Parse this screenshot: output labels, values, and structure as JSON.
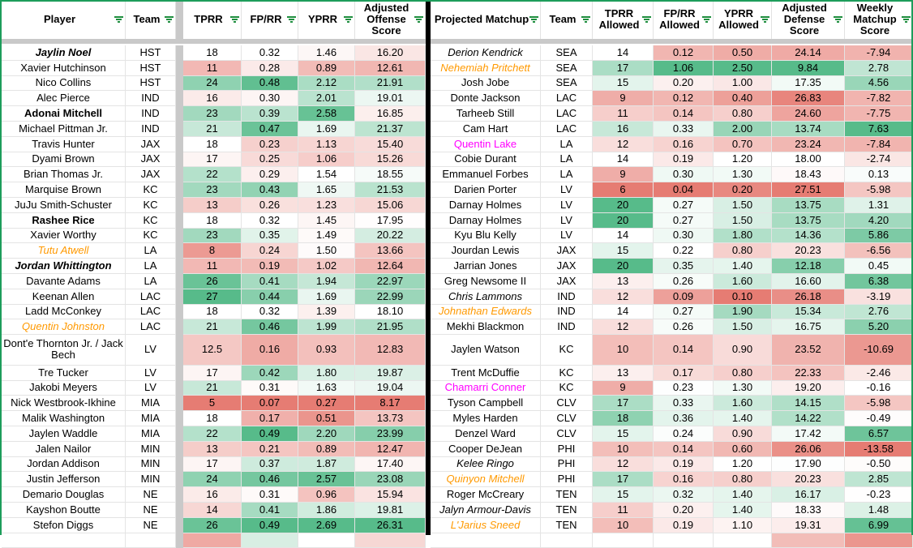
{
  "app": {
    "type": "spreadsheet-grid",
    "description": "Fantasy football receiver vs projected cornerback matchup sheet"
  },
  "colors": {
    "scale_low_red": "#E67C73",
    "scale_mid_white": "#FFFFFF",
    "scale_high_green": "#57BB8A",
    "table_outline_green": "#1D9D5B",
    "filter_icon_green": "#1E8E3E",
    "frozen_pane_gray": "#C9C9C9",
    "table_divider_black": "#000000",
    "player_highlight_orange": "#FF9900",
    "player_highlight_magenta": "#FF00FF"
  },
  "left_table": {
    "name": "offense",
    "name_key": "player",
    "columns": [
      {
        "key": "player",
        "label": "Player",
        "filter": true
      },
      {
        "key": "team",
        "label": "Team",
        "filter": true
      },
      {
        "key": "spacer"
      },
      {
        "key": "tprr",
        "label": "TPRR",
        "filter": true,
        "numeric": true
      },
      {
        "key": "fprr",
        "label": "FP/RR",
        "filter": true,
        "numeric": true
      },
      {
        "key": "yprr",
        "label": "YPRR",
        "filter": true,
        "numeric": true
      },
      {
        "key": "adj",
        "label": "Adjusted Offense Score",
        "filter": true,
        "numeric": true
      }
    ],
    "clipped_row_colors": {
      "tprr": "#efa9a3",
      "fprr": "#d8eee3",
      "yprr": "#ffffff",
      "adj": "#f6d7d4"
    },
    "rows": [
      {
        "player": "Jaylin Noel",
        "team": "HST",
        "tprr": "18",
        "fprr": "0.32",
        "yprr": "1.46",
        "adj": "16.20",
        "style": "bold italic"
      },
      {
        "player": "Xavier Hutchinson",
        "team": "HST",
        "tprr": "11",
        "fprr": "0.28",
        "yprr": "0.89",
        "adj": "12.61",
        "style": ""
      },
      {
        "player": "Nico Collins",
        "team": "HST",
        "tprr": "24",
        "fprr": "0.48",
        "yprr": "2.12",
        "adj": "21.91",
        "style": ""
      },
      {
        "player": "Alec Pierce",
        "team": "IND",
        "tprr": "16",
        "fprr": "0.30",
        "yprr": "2.01",
        "adj": "19.01",
        "style": ""
      },
      {
        "player": "Adonai Mitchell",
        "team": "IND",
        "tprr": "23",
        "fprr": "0.39",
        "yprr": "2.58",
        "adj": "16.85",
        "style": "bold"
      },
      {
        "player": "Michael Pittman Jr.",
        "team": "IND",
        "tprr": "21",
        "fprr": "0.47",
        "yprr": "1.69",
        "adj": "21.37",
        "style": ""
      },
      {
        "player": "Travis Hunter",
        "team": "JAX",
        "tprr": "18",
        "fprr": "0.23",
        "yprr": "1.13",
        "adj": "15.40",
        "style": ""
      },
      {
        "player": "Dyami Brown",
        "team": "JAX",
        "tprr": "17",
        "fprr": "0.25",
        "yprr": "1.06",
        "adj": "15.26",
        "style": ""
      },
      {
        "player": "Brian Thomas Jr.",
        "team": "JAX",
        "tprr": "22",
        "fprr": "0.29",
        "yprr": "1.54",
        "adj": "18.55",
        "style": ""
      },
      {
        "player": "Marquise Brown",
        "team": "KC",
        "tprr": "23",
        "fprr": "0.43",
        "yprr": "1.65",
        "adj": "21.53",
        "style": ""
      },
      {
        "player": "JuJu Smith-Schuster",
        "team": "KC",
        "tprr": "13",
        "fprr": "0.26",
        "yprr": "1.23",
        "adj": "15.06",
        "style": ""
      },
      {
        "player": "Rashee Rice",
        "team": "KC",
        "tprr": "18",
        "fprr": "0.32",
        "yprr": "1.45",
        "adj": "17.95",
        "style": "bold"
      },
      {
        "player": "Xavier Worthy",
        "team": "KC",
        "tprr": "23",
        "fprr": "0.35",
        "yprr": "1.49",
        "adj": "20.22",
        "style": ""
      },
      {
        "player": "Tutu Atwell",
        "team": "LA",
        "tprr": "8",
        "fprr": "0.24",
        "yprr": "1.50",
        "adj": "13.66",
        "style": "italic",
        "color": "orange"
      },
      {
        "player": "Jordan Whittington",
        "team": "LA",
        "tprr": "11",
        "fprr": "0.19",
        "yprr": "1.02",
        "adj": "12.64",
        "style": "bold italic"
      },
      {
        "player": "Davante Adams",
        "team": "LA",
        "tprr": "26",
        "fprr": "0.41",
        "yprr": "1.94",
        "adj": "22.97",
        "style": ""
      },
      {
        "player": "Keenan Allen",
        "team": "LAC",
        "tprr": "27",
        "fprr": "0.44",
        "yprr": "1.69",
        "adj": "22.99",
        "style": ""
      },
      {
        "player": "Ladd McConkey",
        "team": "LAC",
        "tprr": "18",
        "fprr": "0.32",
        "yprr": "1.39",
        "adj": "18.10",
        "style": ""
      },
      {
        "player": "Quentin Johnston",
        "team": "LAC",
        "tprr": "21",
        "fprr": "0.46",
        "yprr": "1.99",
        "adj": "21.95",
        "style": "italic",
        "color": "orange"
      },
      {
        "player": "Dont'e Thornton Jr. / Jack Bech",
        "team": "LV",
        "tprr": "12.5",
        "fprr": "0.16",
        "yprr": "0.93",
        "adj": "12.83",
        "style": "",
        "tall": true
      },
      {
        "player": "Tre Tucker",
        "team": "LV",
        "tprr": "17",
        "fprr": "0.42",
        "yprr": "1.80",
        "adj": "19.87",
        "style": ""
      },
      {
        "player": "Jakobi Meyers",
        "team": "LV",
        "tprr": "21",
        "fprr": "0.31",
        "yprr": "1.63",
        "adj": "19.04",
        "style": ""
      },
      {
        "player": "Nick Westbrook-Ikhine",
        "team": "MIA",
        "tprr": "5",
        "fprr": "0.07",
        "yprr": "0.27",
        "adj": "8.17",
        "style": ""
      },
      {
        "player": "Malik Washington",
        "team": "MIA",
        "tprr": "18",
        "fprr": "0.17",
        "yprr": "0.51",
        "adj": "13.73",
        "style": ""
      },
      {
        "player": "Jaylen Waddle",
        "team": "MIA",
        "tprr": "22",
        "fprr": "0.49",
        "yprr": "2.20",
        "adj": "23.99",
        "style": ""
      },
      {
        "player": "Jalen Nailor",
        "team": "MIN",
        "tprr": "13",
        "fprr": "0.21",
        "yprr": "0.89",
        "adj": "12.47",
        "style": ""
      },
      {
        "player": "Jordan Addison",
        "team": "MIN",
        "tprr": "17",
        "fprr": "0.37",
        "yprr": "1.87",
        "adj": "17.40",
        "style": ""
      },
      {
        "player": "Justin Jefferson",
        "team": "MIN",
        "tprr": "24",
        "fprr": "0.46",
        "yprr": "2.57",
        "adj": "23.08",
        "style": ""
      },
      {
        "player": "Demario Douglas",
        "team": "NE",
        "tprr": "16",
        "fprr": "0.31",
        "yprr": "0.96",
        "adj": "15.94",
        "style": ""
      },
      {
        "player": "Kayshon Boutte",
        "team": "NE",
        "tprr": "14",
        "fprr": "0.41",
        "yprr": "1.86",
        "adj": "19.81",
        "style": ""
      },
      {
        "player": "Stefon Diggs",
        "team": "NE",
        "tprr": "26",
        "fprr": "0.49",
        "yprr": "2.69",
        "adj": "26.31",
        "style": ""
      }
    ]
  },
  "right_table": {
    "name": "defense",
    "name_key": "matchup",
    "columns": [
      {
        "key": "matchup",
        "label": "Projected Matchup",
        "filter": true
      },
      {
        "key": "team",
        "label": "Team",
        "filter": true
      },
      {
        "key": "tprr",
        "label": "TPRR Allowed",
        "filter": true,
        "numeric": true
      },
      {
        "key": "fprr",
        "label": "FP/RR Allowed",
        "filter": true,
        "numeric": true
      },
      {
        "key": "yprr",
        "label": "YPRR Allowed",
        "filter": true,
        "numeric": true
      },
      {
        "key": "adj",
        "label": "Adjusted Defense Score",
        "filter": true,
        "numeric": true,
        "invert": true
      },
      {
        "key": "weekly",
        "label": "Weekly Matchup Score",
        "filter": true,
        "numeric": true
      }
    ],
    "clipped_row_colors": {
      "tprr": "#ffffff",
      "fprr": "#ffffff",
      "yprr": "#ffffff",
      "adj": "#f2bdb8",
      "weekly": "#eb968e"
    },
    "rows": [
      {
        "matchup": "Derion Kendrick",
        "team": "SEA",
        "tprr": "14",
        "fprr": "0.12",
        "yprr": "0.50",
        "adj": "24.14",
        "weekly": "-7.94",
        "style": "italic"
      },
      {
        "matchup": "Nehemiah Pritchett",
        "team": "SEA",
        "tprr": "17",
        "fprr": "1.06",
        "yprr": "2.50",
        "adj": "9.84",
        "weekly": "2.78",
        "style": "italic",
        "color": "orange"
      },
      {
        "matchup": "Josh Jobe",
        "team": "SEA",
        "tprr": "15",
        "fprr": "0.20",
        "yprr": "1.00",
        "adj": "17.35",
        "weekly": "4.56",
        "style": ""
      },
      {
        "matchup": "Donte Jackson",
        "team": "LAC",
        "tprr": "9",
        "fprr": "0.12",
        "yprr": "0.40",
        "adj": "26.83",
        "weekly": "-7.82",
        "style": ""
      },
      {
        "matchup": "Tarheeb Still",
        "team": "LAC",
        "tprr": "11",
        "fprr": "0.14",
        "yprr": "0.80",
        "adj": "24.60",
        "weekly": "-7.75",
        "style": ""
      },
      {
        "matchup": "Cam Hart",
        "team": "LAC",
        "tprr": "16",
        "fprr": "0.33",
        "yprr": "2.00",
        "adj": "13.74",
        "weekly": "7.63",
        "style": ""
      },
      {
        "matchup": "Quentin Lake",
        "team": "LA",
        "tprr": "12",
        "fprr": "0.16",
        "yprr": "0.70",
        "adj": "23.24",
        "weekly": "-7.84",
        "style": "",
        "color": "magenta"
      },
      {
        "matchup": "Cobie Durant",
        "team": "LA",
        "tprr": "14",
        "fprr": "0.19",
        "yprr": "1.20",
        "adj": "18.00",
        "weekly": "-2.74",
        "style": ""
      },
      {
        "matchup": "Emmanuel Forbes",
        "team": "LA",
        "tprr": "9",
        "fprr": "0.30",
        "yprr": "1.30",
        "adj": "18.43",
        "weekly": "0.13",
        "style": ""
      },
      {
        "matchup": "Darien Porter",
        "team": "LV",
        "tprr": "6",
        "fprr": "0.04",
        "yprr": "0.20",
        "adj": "27.51",
        "weekly": "-5.98",
        "style": ""
      },
      {
        "matchup": "Darnay Holmes",
        "team": "LV",
        "tprr": "20",
        "fprr": "0.27",
        "yprr": "1.50",
        "adj": "13.75",
        "weekly": "1.31",
        "style": ""
      },
      {
        "matchup": "Darnay Holmes",
        "team": "LV",
        "tprr": "20",
        "fprr": "0.27",
        "yprr": "1.50",
        "adj": "13.75",
        "weekly": "4.20",
        "style": ""
      },
      {
        "matchup": "Kyu Blu Kelly",
        "team": "LV",
        "tprr": "14",
        "fprr": "0.30",
        "yprr": "1.80",
        "adj": "14.36",
        "weekly": "5.86",
        "style": ""
      },
      {
        "matchup": "Jourdan Lewis",
        "team": "JAX",
        "tprr": "15",
        "fprr": "0.22",
        "yprr": "0.80",
        "adj": "20.23",
        "weekly": "-6.56",
        "style": ""
      },
      {
        "matchup": "Jarrian Jones",
        "team": "JAX",
        "tprr": "20",
        "fprr": "0.35",
        "yprr": "1.40",
        "adj": "12.18",
        "weekly": "0.45",
        "style": ""
      },
      {
        "matchup": "Greg Newsome II",
        "team": "JAX",
        "tprr": "13",
        "fprr": "0.26",
        "yprr": "1.60",
        "adj": "16.60",
        "weekly": "6.38",
        "style": ""
      },
      {
        "matchup": "Chris Lammons",
        "team": "IND",
        "tprr": "12",
        "fprr": "0.09",
        "yprr": "0.10",
        "adj": "26.18",
        "weekly": "-3.19",
        "style": "italic"
      },
      {
        "matchup": "Johnathan Edwards",
        "team": "IND",
        "tprr": "14",
        "fprr": "0.27",
        "yprr": "1.90",
        "adj": "15.34",
        "weekly": "2.76",
        "style": "italic",
        "color": "orange"
      },
      {
        "matchup": "Mekhi Blackmon",
        "team": "IND",
        "tprr": "12",
        "fprr": "0.26",
        "yprr": "1.50",
        "adj": "16.75",
        "weekly": "5.20",
        "style": ""
      },
      {
        "matchup": "Jaylen Watson",
        "team": "KC",
        "tprr": "10",
        "fprr": "0.14",
        "yprr": "0.90",
        "adj": "23.52",
        "weekly": "-10.69",
        "style": "",
        "tall": true
      },
      {
        "matchup": "Trent McDuffie",
        "team": "KC",
        "tprr": "13",
        "fprr": "0.17",
        "yprr": "0.80",
        "adj": "22.33",
        "weekly": "-2.46",
        "style": ""
      },
      {
        "matchup": "Chamarri Conner",
        "team": "KC",
        "tprr": "9",
        "fprr": "0.23",
        "yprr": "1.30",
        "adj": "19.20",
        "weekly": "-0.16",
        "style": "",
        "color": "magenta"
      },
      {
        "matchup": "Tyson Campbell",
        "team": "CLV",
        "tprr": "17",
        "fprr": "0.33",
        "yprr": "1.60",
        "adj": "14.15",
        "weekly": "-5.98",
        "style": ""
      },
      {
        "matchup": "Myles Harden",
        "team": "CLV",
        "tprr": "18",
        "fprr": "0.36",
        "yprr": "1.40",
        "adj": "14.22",
        "weekly": "-0.49",
        "style": ""
      },
      {
        "matchup": "Denzel Ward",
        "team": "CLV",
        "tprr": "15",
        "fprr": "0.24",
        "yprr": "0.90",
        "adj": "17.42",
        "weekly": "6.57",
        "style": ""
      },
      {
        "matchup": "Cooper DeJean",
        "team": "PHI",
        "tprr": "10",
        "fprr": "0.14",
        "yprr": "0.60",
        "adj": "26.06",
        "weekly": "-13.58",
        "style": ""
      },
      {
        "matchup": "Kelee Ringo",
        "team": "PHI",
        "tprr": "12",
        "fprr": "0.19",
        "yprr": "1.20",
        "adj": "17.90",
        "weekly": "-0.50",
        "style": "italic"
      },
      {
        "matchup": "Quinyon Mitchell",
        "team": "PHI",
        "tprr": "17",
        "fprr": "0.16",
        "yprr": "0.80",
        "adj": "20.23",
        "weekly": "2.85",
        "style": "italic",
        "color": "orange"
      },
      {
        "matchup": "Roger McCreary",
        "team": "TEN",
        "tprr": "15",
        "fprr": "0.32",
        "yprr": "1.40",
        "adj": "16.17",
        "weekly": "-0.23",
        "style": ""
      },
      {
        "matchup": "Jalyn Armour-Davis",
        "team": "TEN",
        "tprr": "11",
        "fprr": "0.20",
        "yprr": "1.40",
        "adj": "18.33",
        "weekly": "1.48",
        "style": "italic"
      },
      {
        "matchup": "L'Jarius Sneed",
        "team": "TEN",
        "tprr": "10",
        "fprr": "0.19",
        "yprr": "1.10",
        "adj": "19.31",
        "weekly": "6.99",
        "style": "italic",
        "color": "orange"
      }
    ]
  }
}
